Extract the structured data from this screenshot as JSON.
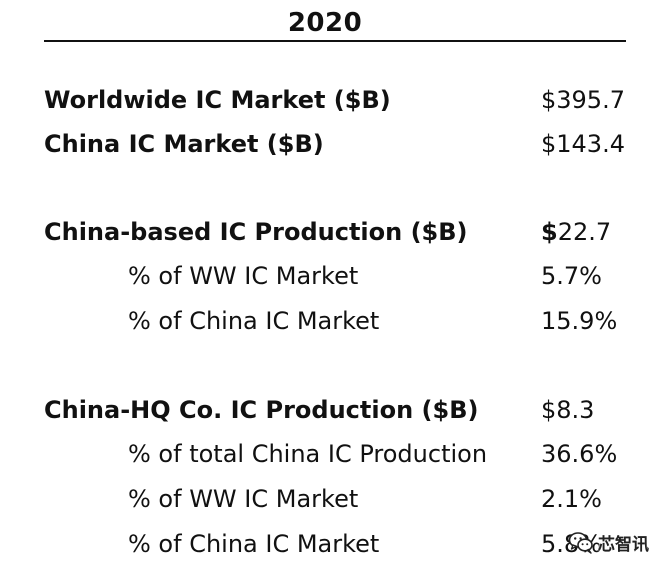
{
  "header": {
    "year": "2020"
  },
  "rows": [
    {
      "label": "Worldwide IC Market ($B)",
      "value": "$395.7"
    },
    {
      "label": "China IC Market ($B)",
      "value": "$143.4"
    },
    {
      "label": "China-based IC Production ($B)",
      "value_symbol": "$",
      "value": "22.7"
    },
    {
      "label": "% of WW IC Market",
      "value": "5.7%"
    },
    {
      "label": "% of China IC Market",
      "value": "15.9%"
    },
    {
      "label": "China-HQ Co. IC Production ($B)",
      "value": "$8.3"
    },
    {
      "label": "% of total China IC Production",
      "value": "36.6%"
    },
    {
      "label": "% of WW IC Market",
      "value": "2.1%"
    },
    {
      "label": "% of China IC Market",
      "value": "5.8%"
    }
  ],
  "watermark": {
    "text": "芯智讯",
    "icon": "wechat-logo-icon"
  }
}
